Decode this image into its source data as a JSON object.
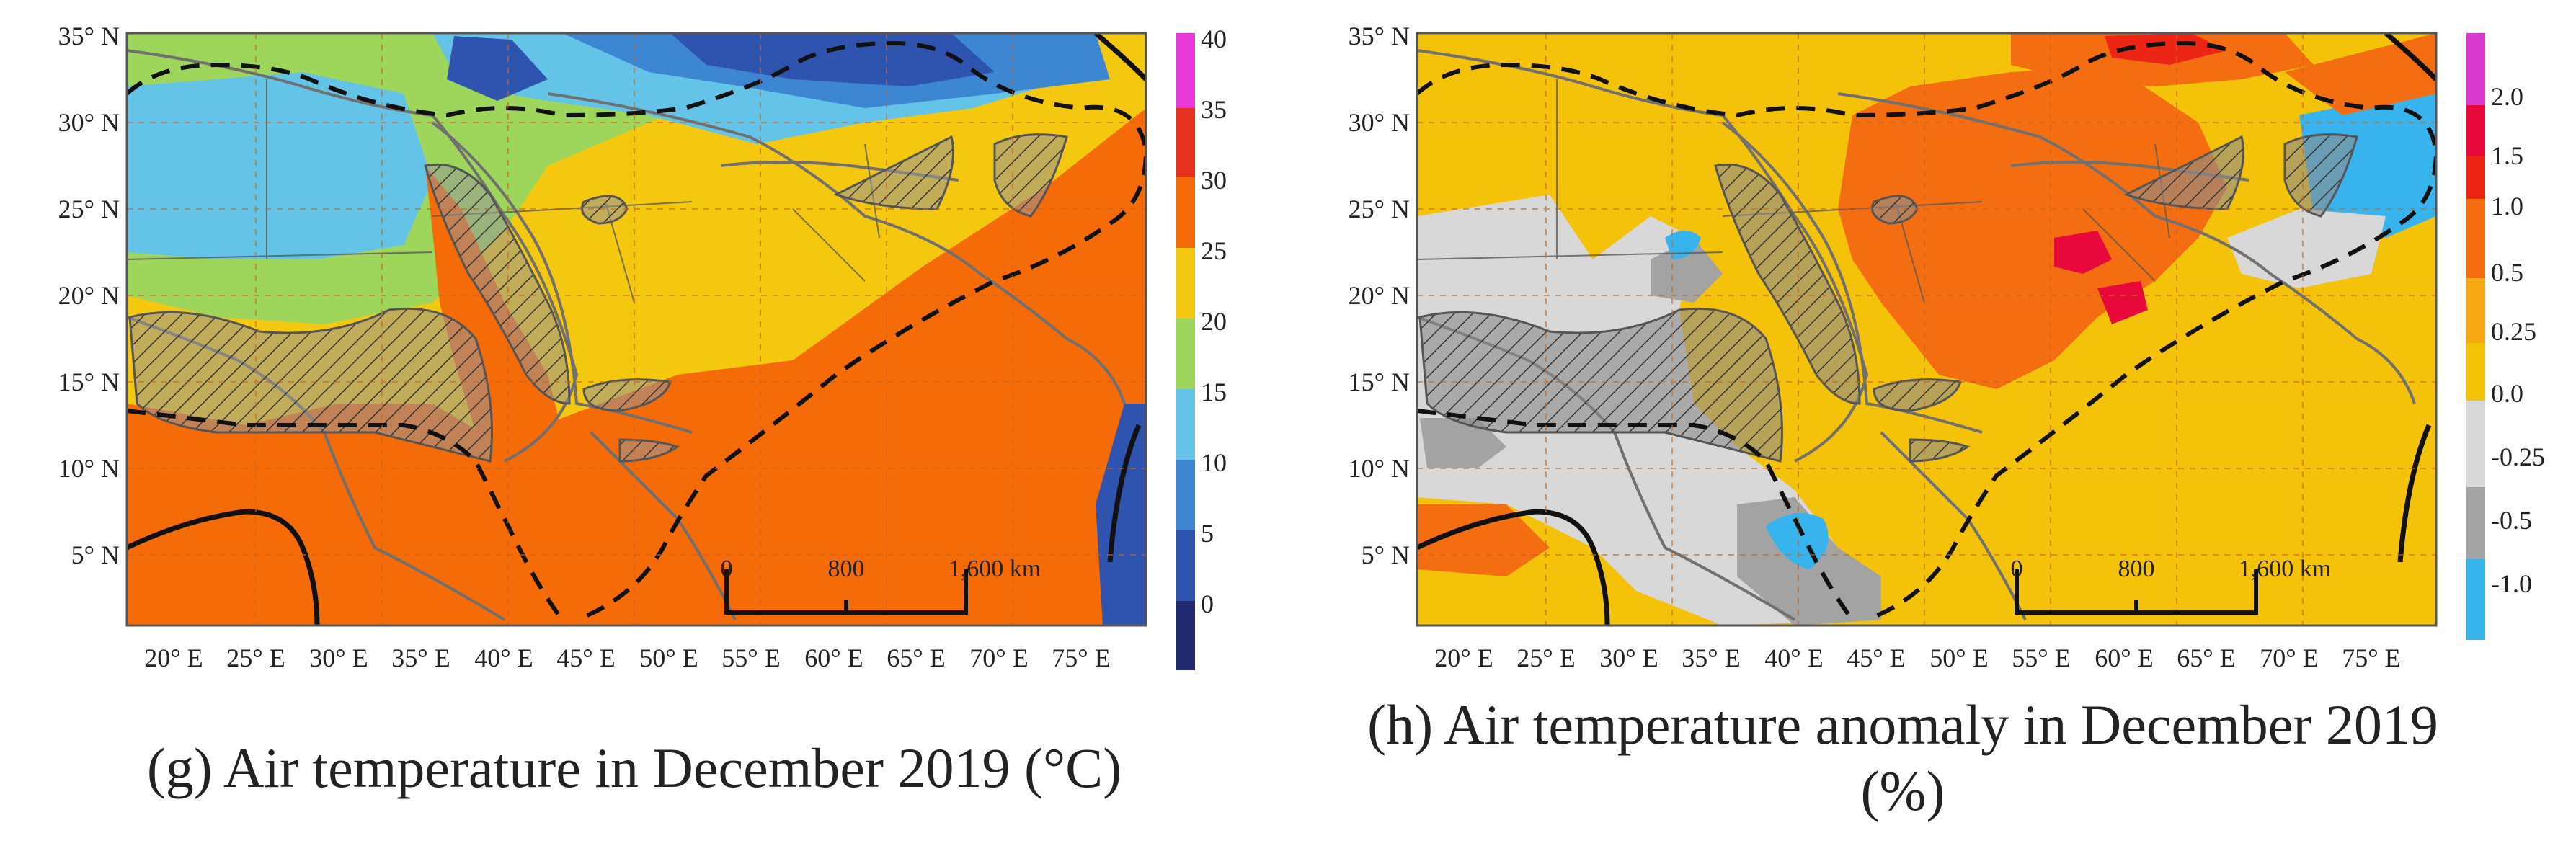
{
  "panels": [
    {
      "caption": "(g) Air temperature in December 2019 (°C)",
      "lat_labels": [
        "35° N",
        "30° N",
        "25° N",
        "20° N",
        "15° N",
        "10° N",
        "5° N"
      ],
      "lon_labels": [
        "20° E",
        "25° E",
        "30° E",
        "35° E",
        "40° E",
        "45° E",
        "50° E",
        "55° E",
        "60° E",
        "65° E",
        "70° E",
        "75° E"
      ],
      "scale_bar": {
        "labels": [
          "0",
          "800",
          "1,600 km"
        ]
      },
      "legend": {
        "labels": [
          "40",
          "35",
          "30",
          "25",
          "20",
          "15",
          "10",
          "5",
          "0"
        ],
        "colors": [
          "#e83ad8",
          "#e6321c",
          "#f46b08",
          "#f5c810",
          "#9dd65a",
          "#63c4e8",
          "#3d86d2",
          "#2f54b0",
          "#222a72"
        ]
      }
    },
    {
      "caption": "(h) Air temperature anomaly in December 2019 (%)",
      "lat_labels": [
        "35° N",
        "30° N",
        "25° N",
        "20° N",
        "15° N",
        "10° N",
        "5° N"
      ],
      "lon_labels": [
        "20° E",
        "25° E",
        "30° E",
        "35° E",
        "40° E",
        "45° E",
        "50° E",
        "55° E",
        "60° E",
        "65° E",
        "70° E",
        "75° E"
      ],
      "scale_bar": {
        "labels": [
          "0",
          "800",
          "1,600 km"
        ]
      },
      "legend": {
        "labels": [
          "2.0",
          "1.5",
          "1.0",
          "0.5",
          "0.25",
          "0.0",
          "-0.25",
          "-0.5",
          "-1.0"
        ],
        "colors": [
          "#d93bd0",
          "#e8083c",
          "#ec2515",
          "#f46d10",
          "#f6a712",
          "#f5c20a",
          "#d8d8d8",
          "#a3a3a3",
          "#37b3ee"
        ]
      }
    }
  ]
}
